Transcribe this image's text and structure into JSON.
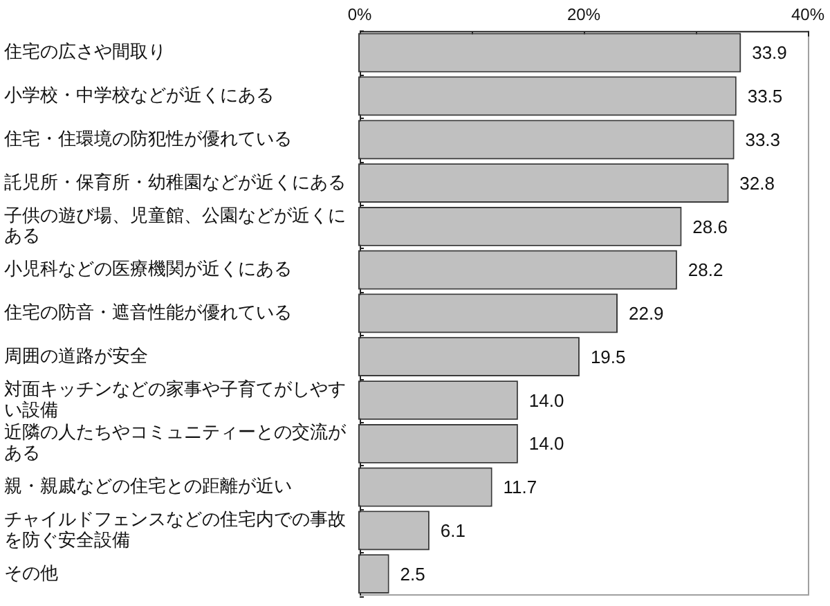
{
  "chart_data": {
    "type": "bar",
    "orientation": "horizontal",
    "categories": [
      "住宅の広さや間取り",
      "小学校・中学校などが近くにある",
      "住宅・住環境の防犯性が優れている",
      "託児所・保育所・幼稚園などが近くにある",
      "子供の遊び場、児童館、公園などが近くにある",
      "小児科などの医療機関が近くにある",
      "住宅の防音・遮音性能が優れている",
      "周囲の道路が安全",
      "対面キッチンなどの家事や子育てがしやすい設備",
      "近隣の人たちやコミュニティーとの交流がある",
      "親・親戚などの住宅との距離が近い",
      "チャイルドフェンスなどの住宅内での事故を防ぐ安全設備",
      "その他"
    ],
    "values": [
      33.9,
      33.5,
      33.3,
      32.8,
      28.6,
      28.2,
      22.9,
      19.5,
      14.0,
      14.0,
      11.7,
      6.1,
      2.5
    ],
    "value_labels": [
      "33.9",
      "33.5",
      "33.3",
      "32.8",
      "28.6",
      "28.2",
      "22.9",
      "19.5",
      "14.0",
      "14.0",
      "11.7",
      "6.1",
      "2.5"
    ],
    "color": "#c0c0c0",
    "xlim": [
      0,
      40
    ],
    "xticks": [
      {
        "value": 0,
        "label": "0%"
      },
      {
        "value": 10,
        "label": null
      },
      {
        "value": 20,
        "label": "20%"
      },
      {
        "value": 30,
        "label": null
      },
      {
        "value": 40,
        "label": "40%"
      }
    ]
  }
}
